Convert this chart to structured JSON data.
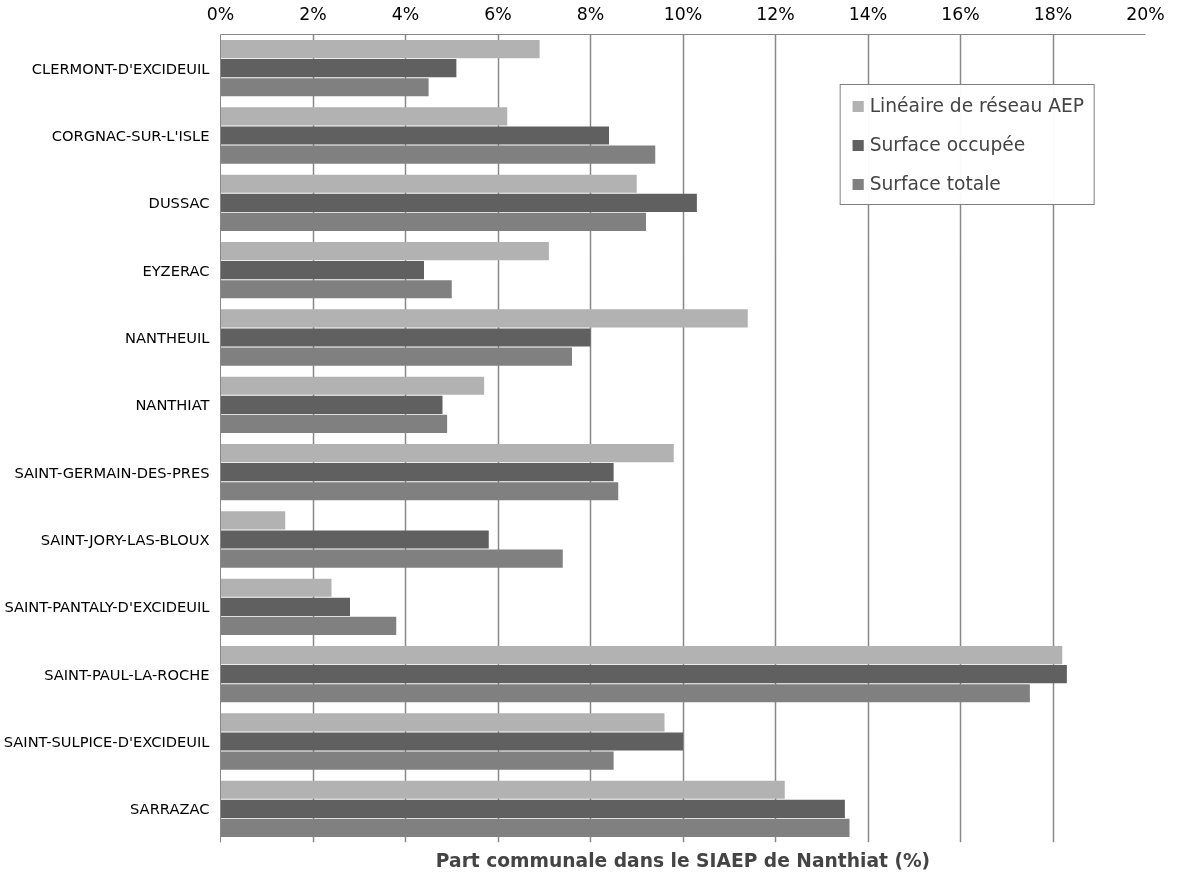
{
  "chart_data": {
    "type": "bar",
    "orientation": "horizontal",
    "xlabel": "Part communale dans le SIAEP de Nanthiat (%)",
    "categories": [
      "CLERMONT-D'EXCIDEUIL",
      "CORGNAC-SUR-L'ISLE",
      "DUSSAC",
      "EYZERAC",
      "NANTHEUIL",
      "NANTHIAT",
      "SAINT-GERMAIN-DES-PRES",
      "SAINT-JORY-LAS-BLOUX",
      "SAINT-PANTALY-D'EXCIDEUIL",
      "SAINT-PAUL-LA-ROCHE",
      "SAINT-SULPICE-D'EXCIDEUIL",
      "SARRAZAC"
    ],
    "series": [
      {
        "name": "Linéaire de réseau AEP",
        "color": "#b2b2b2",
        "values": [
          6.9,
          6.2,
          9.0,
          7.1,
          11.4,
          5.7,
          9.8,
          1.4,
          2.4,
          18.2,
          9.6,
          12.2
        ]
      },
      {
        "name": "Surface occupée",
        "color": "#606060",
        "values": [
          5.1,
          8.4,
          10.3,
          4.4,
          8.0,
          4.8,
          8.5,
          5.8,
          2.8,
          18.3,
          10.0,
          13.5
        ]
      },
      {
        "name": "Surface totale",
        "color": "#808080",
        "values": [
          4.5,
          9.4,
          9.2,
          5.0,
          7.6,
          4.9,
          8.6,
          7.4,
          3.8,
          17.5,
          8.5,
          13.6
        ]
      }
    ],
    "xlim": [
      0,
      20
    ],
    "xticks": [
      {
        "value": 0,
        "label": "0%"
      },
      {
        "value": 2,
        "label": "2%"
      },
      {
        "value": 4,
        "label": "4%"
      },
      {
        "value": 6,
        "label": "6%"
      },
      {
        "value": 8,
        "label": "8%"
      },
      {
        "value": 10,
        "label": "10%"
      },
      {
        "value": 12,
        "label": "12%"
      },
      {
        "value": 14,
        "label": "14%"
      },
      {
        "value": 16,
        "label": "16%"
      },
      {
        "value": 18,
        "label": "18%"
      },
      {
        "value": 20,
        "label": "20%"
      }
    ],
    "grid": "x",
    "legend": "top right"
  }
}
